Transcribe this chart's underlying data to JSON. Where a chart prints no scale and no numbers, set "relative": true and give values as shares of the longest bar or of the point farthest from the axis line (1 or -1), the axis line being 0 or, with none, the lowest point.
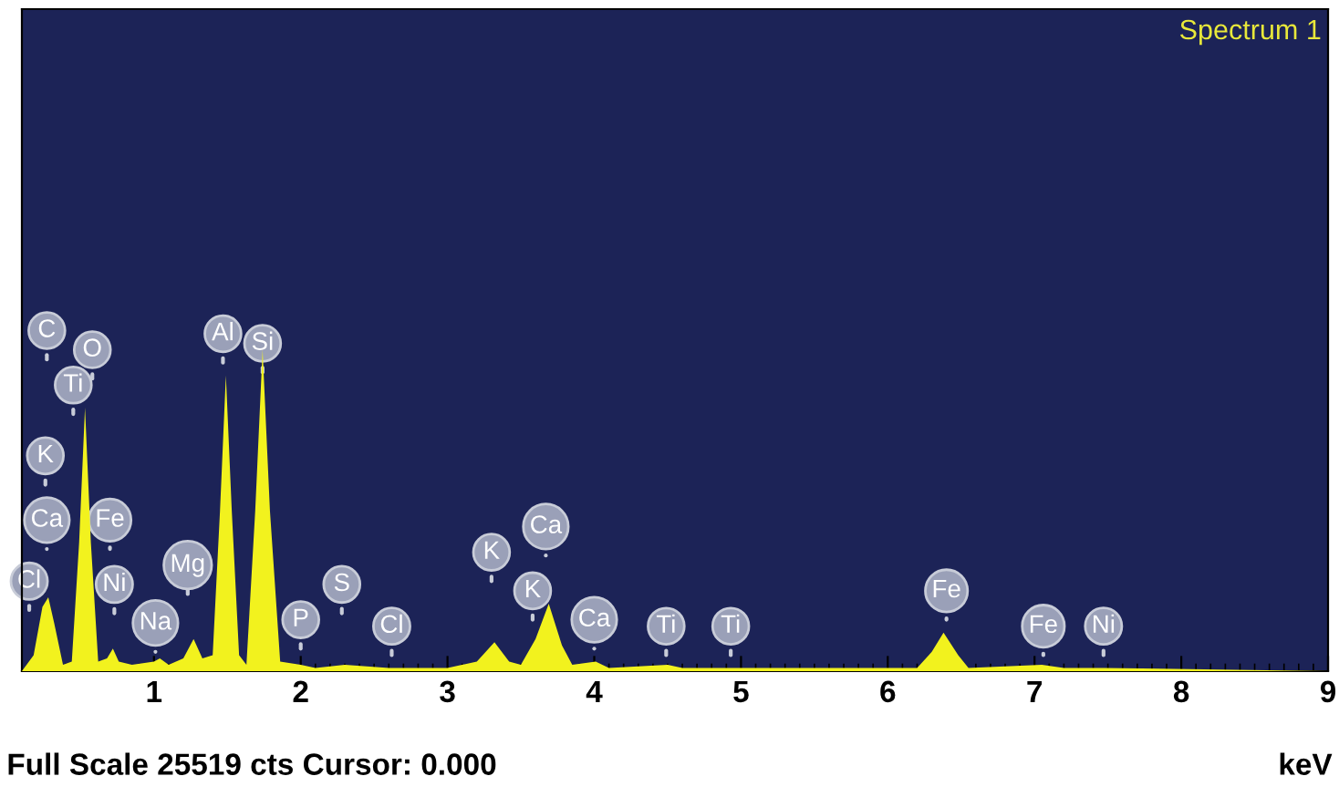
{
  "chart_data": {
    "type": "area",
    "relative": true,
    "title": "Spectrum 1",
    "xlabel": "keV",
    "xlim": [
      0.1,
      9.0
    ],
    "xticks": [
      1,
      2,
      3,
      4,
      5,
      6,
      7,
      8,
      9
    ],
    "tick_labels": "x",
    "grid": false,
    "series": [
      {
        "color": "#f2f21e",
        "x": [
          0.1,
          0.18,
          0.24,
          0.28,
          0.32,
          0.38,
          0.44,
          0.49,
          0.53,
          0.57,
          0.62,
          0.68,
          0.72,
          0.76,
          0.85,
          1.0,
          1.04,
          1.1,
          1.2,
          1.27,
          1.33,
          1.4,
          1.45,
          1.49,
          1.53,
          1.58,
          1.63,
          1.69,
          1.74,
          1.79,
          1.86,
          2.0,
          2.1,
          2.3,
          2.6,
          3.0,
          3.2,
          3.32,
          3.42,
          3.5,
          3.6,
          3.69,
          3.78,
          3.85,
          4.01,
          4.1,
          4.5,
          4.6,
          6.2,
          6.3,
          6.38,
          6.48,
          6.55,
          7.05,
          7.2,
          7.47,
          9.0
        ],
        "values": [
          0,
          0.05,
          0.2,
          0.23,
          0.15,
          0.02,
          0.03,
          0.4,
          0.82,
          0.4,
          0.03,
          0.04,
          0.07,
          0.03,
          0.02,
          0.03,
          0.04,
          0.02,
          0.04,
          0.1,
          0.04,
          0.05,
          0.5,
          0.92,
          0.5,
          0.05,
          0.02,
          0.5,
          1.0,
          0.5,
          0.03,
          0.02,
          0.01,
          0.02,
          0.01,
          0.01,
          0.03,
          0.09,
          0.03,
          0.02,
          0.1,
          0.21,
          0.08,
          0.02,
          0.03,
          0.01,
          0.02,
          0.01,
          0.01,
          0.06,
          0.12,
          0.05,
          0.01,
          0.02,
          0.01,
          0.01,
          0
        ]
      }
    ],
    "annotations": [
      {
        "text": "Cl",
        "x": 0.15,
        "y": 0.28
      },
      {
        "text": "Ca",
        "x": 0.27,
        "y": 0.47
      },
      {
        "text": "K",
        "x": 0.26,
        "y": 0.67
      },
      {
        "text": "C",
        "x": 0.27,
        "y": 1.06
      },
      {
        "text": "O",
        "x": 0.58,
        "y": 1.0
      },
      {
        "text": "Ti",
        "x": 0.45,
        "y": 0.89
      },
      {
        "text": "Fe",
        "x": 0.7,
        "y": 0.47
      },
      {
        "text": "Ni",
        "x": 0.73,
        "y": 0.27
      },
      {
        "text": "Na",
        "x": 1.01,
        "y": 0.15
      },
      {
        "text": "Mg",
        "x": 1.23,
        "y": 0.33
      },
      {
        "text": "Al",
        "x": 1.47,
        "y": 1.05
      },
      {
        "text": "Si",
        "x": 1.74,
        "y": 1.02
      },
      {
        "text": "P",
        "x": 2.0,
        "y": 0.16
      },
      {
        "text": "S",
        "x": 2.28,
        "y": 0.27
      },
      {
        "text": "Cl",
        "x": 2.62,
        "y": 0.14
      },
      {
        "text": "K",
        "x": 3.3,
        "y": 0.37
      },
      {
        "text": "Ca",
        "x": 3.67,
        "y": 0.45
      },
      {
        "text": "K",
        "x": 3.58,
        "y": 0.25
      },
      {
        "text": "Ca",
        "x": 4.0,
        "y": 0.16
      },
      {
        "text": "Ti",
        "x": 4.49,
        "y": 0.14
      },
      {
        "text": "Ti",
        "x": 4.93,
        "y": 0.14
      },
      {
        "text": "Fe",
        "x": 6.4,
        "y": 0.25
      },
      {
        "text": "Fe",
        "x": 7.06,
        "y": 0.14
      },
      {
        "text": "Ni",
        "x": 7.47,
        "y": 0.14
      },
      "Full Scale 25519 cts Cursor: 0.000"
    ]
  }
}
